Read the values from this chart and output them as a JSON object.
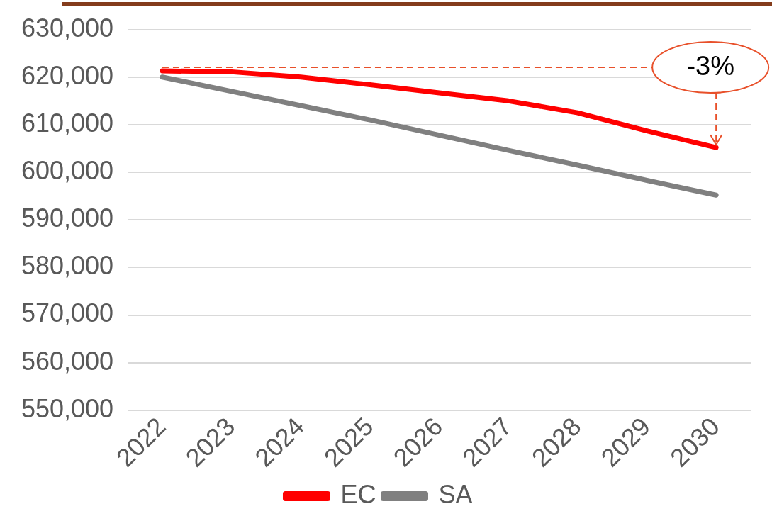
{
  "chart_data": {
    "type": "line",
    "categories": [
      "2022",
      "2023",
      "2024",
      "2025",
      "2026",
      "2027",
      "2028",
      "2029",
      "2030"
    ],
    "series": [
      {
        "name": "EC",
        "color": "#ff0000",
        "values": [
          621300,
          621100,
          620000,
          618400,
          616700,
          615000,
          612500,
          608700,
          605200
        ]
      },
      {
        "name": "SA",
        "color": "#808080",
        "values": [
          620000,
          617000,
          614000,
          611000,
          607800,
          604600,
          601500,
          598300,
          595200
        ]
      }
    ],
    "ylim": [
      550000,
      630000
    ],
    "yticks": [
      {
        "value": 550000,
        "label": "550,000"
      },
      {
        "value": 560000,
        "label": "560,000"
      },
      {
        "value": 570000,
        "label": "570,000"
      },
      {
        "value": 580000,
        "label": "580,000"
      },
      {
        "value": 590000,
        "label": "590,000"
      },
      {
        "value": 600000,
        "label": "600,000"
      },
      {
        "value": 610000,
        "label": "610,000"
      },
      {
        "value": 620000,
        "label": "620,000"
      },
      {
        "value": 630000,
        "label": "630,000"
      }
    ],
    "grid": "y",
    "legend": "bottom",
    "marker": "none",
    "line_style": "solid",
    "annotations": [
      {
        "text": "-3%",
        "x": "2030",
        "y": 605200
      }
    ]
  }
}
